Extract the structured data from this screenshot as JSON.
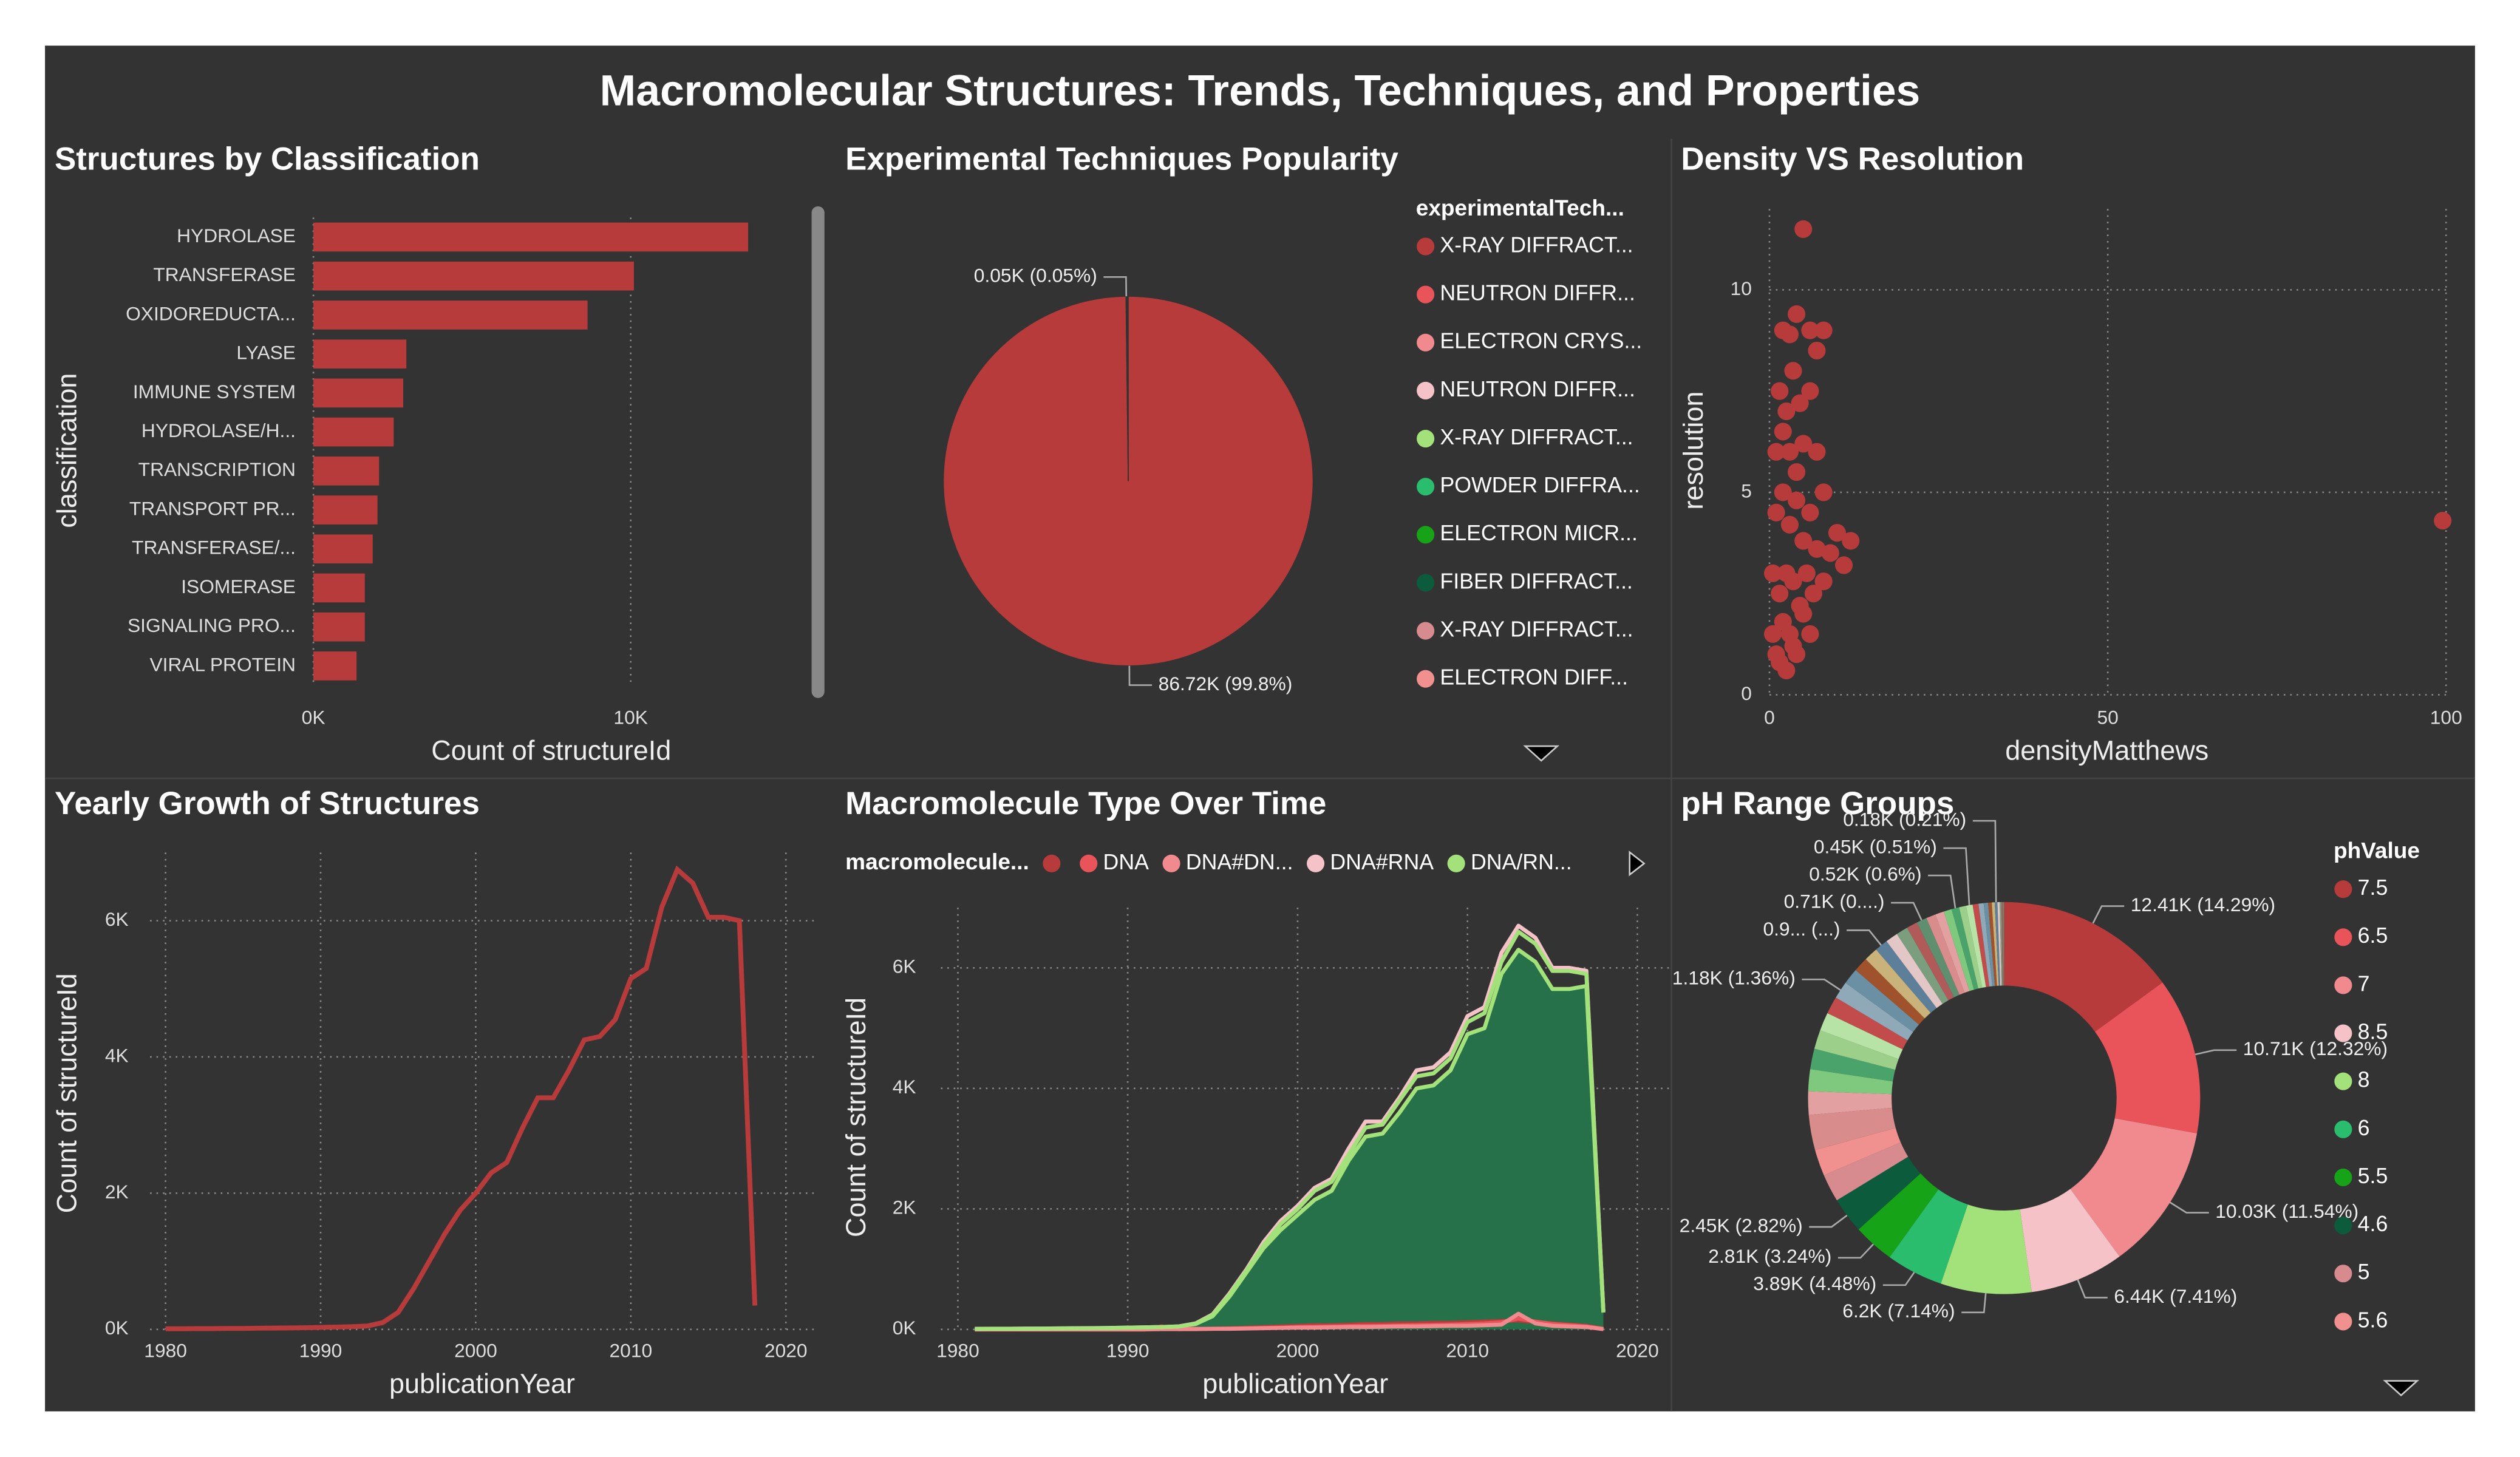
{
  "title": "Macromolecular Structures: Trends, Techniques, and Properties",
  "chart_data": [
    {
      "type": "bar",
      "orientation": "horizontal",
      "title": "Structures by Classification",
      "categories": [
        "HYDROLASE",
        "TRANSFERASE",
        "OXIDOREDUCTA...",
        "LYASE",
        "IMMUNE SYSTEM",
        "HYDROLASE/H...",
        "TRANSCRIPTION",
        "TRANSPORT PR...",
        "TRANSFERASE/...",
        "ISOMERASE",
        "SIGNALING PRO...",
        "VIRAL PROTEIN"
      ],
      "values": [
        13700,
        10100,
        8640,
        2930,
        2830,
        2530,
        2070,
        2020,
        1870,
        1620,
        1620,
        1360
      ],
      "color": "#b83b3b",
      "xlabel": "Count of structureId",
      "ylabel": "classification",
      "xlim": [
        0,
        15700
      ],
      "xticks": [
        {
          "value": 0,
          "label": "0K"
        },
        {
          "value": 10000,
          "label": "10K"
        }
      ],
      "grid": true
    },
    {
      "type": "pie",
      "title": "Experimental Techniques Popularity",
      "legend_title": "experimentalTech...",
      "categories": [
        "X-RAY DIFFRACT...",
        "NEUTRON DIFFR...",
        "ELECTRON CRYS...",
        "NEUTRON DIFFR...",
        "X-RAY DIFFRACT...",
        "POWDER DIFFRA...",
        "ELECTRON MICR...",
        "FIBER DIFFRACT...",
        "X-RAY DIFFRACT...",
        "ELECTRON DIFF..."
      ],
      "values": [
        86720,
        47,
        40,
        30,
        20,
        12,
        8,
        6,
        4,
        3
      ],
      "value_labels": [
        "86.72K (99.8%)",
        "0.05K (0.05%)",
        null,
        null,
        null,
        null,
        null,
        null,
        null,
        null
      ],
      "colors": [
        "#b83b3b",
        "#e8545a",
        "#f08a8e",
        "#f5c3c7",
        "#a3e27a",
        "#2abd6e",
        "#17a317",
        "#0c5b3c",
        "#d88b8e",
        "#f0908f"
      ]
    },
    {
      "type": "scatter",
      "title": "Density VS Resolution",
      "xlabel": "densityMatthews",
      "ylabel": "resolution",
      "x": [
        5,
        99.5,
        2,
        3,
        4,
        6,
        8,
        7,
        1.5,
        2.5,
        3.5,
        4.5,
        6,
        1,
        2,
        3,
        4,
        5,
        7,
        8,
        10,
        12,
        11,
        9,
        1,
        2,
        3,
        4,
        5,
        6,
        7,
        0.5,
        1.5,
        2.5,
        3.5,
        4.5,
        5.5,
        6.5,
        8,
        0.5,
        1,
        2,
        3,
        4,
        5,
        6,
        1.5,
        2.5,
        3.5
      ],
      "values": [
        11.5,
        4.3,
        9,
        8.9,
        9.4,
        9,
        9,
        8.5,
        7.5,
        7,
        8,
        7.2,
        7.5,
        6,
        6.5,
        6,
        5.5,
        6.2,
        6,
        5,
        4,
        3.8,
        3.2,
        3.5,
        4.5,
        5,
        4.2,
        4.8,
        3.8,
        4.5,
        3.6,
        3,
        2.5,
        3,
        2.8,
        2.2,
        3,
        2.5,
        2.8,
        1.5,
        1,
        1.8,
        1.5,
        1,
        2,
        1.5,
        0.8,
        0.6,
        1.2
      ],
      "color": "#b83b3b",
      "xlim": [
        0,
        100
      ],
      "ylim": [
        0,
        12
      ],
      "xticks": [
        0,
        50,
        100
      ],
      "yticks": [
        0,
        5,
        10
      ],
      "grid": true
    },
    {
      "type": "line",
      "title": "Yearly Growth of Structures",
      "xlabel": "publicationYear",
      "ylabel": "Count of structureId",
      "x": [
        1980,
        1981,
        1982,
        1983,
        1984,
        1985,
        1986,
        1987,
        1988,
        1989,
        1990,
        1991,
        1992,
        1993,
        1994,
        1995,
        1996,
        1997,
        1998,
        1999,
        2000,
        2001,
        2002,
        2003,
        2004,
        2005,
        2006,
        2007,
        2008,
        2009,
        2010,
        2011,
        2012,
        2013,
        2014,
        2015,
        2016,
        2017,
        2018
      ],
      "values": [
        10,
        10,
        12,
        12,
        15,
        15,
        18,
        20,
        22,
        25,
        30,
        35,
        40,
        50,
        100,
        250,
        600,
        1000,
        1400,
        1750,
        2000,
        2300,
        2450,
        2950,
        3400,
        3400,
        3800,
        4250,
        4300,
        4550,
        5150,
        5300,
        6200,
        6750,
        6550,
        6050,
        6050,
        6000,
        350
      ],
      "color": "#b83b3b",
      "xlim": [
        1979,
        2022
      ],
      "ylim": [
        0,
        7000
      ],
      "xticks": [
        1980,
        1990,
        2000,
        2010,
        2020
      ],
      "yticks": [
        {
          "value": 0,
          "label": "0K"
        },
        {
          "value": 2000,
          "label": "2K"
        },
        {
          "value": 4000,
          "label": "4K"
        },
        {
          "value": 6000,
          "label": "6K"
        }
      ],
      "grid": true
    },
    {
      "type": "area",
      "title": "Macromolecule Type Over Time",
      "legend_title": "macromolecule...",
      "xlabel": "publicationYear",
      "ylabel": "Count of structureId",
      "x": [
        1980,
        1981,
        1982,
        1983,
        1984,
        1985,
        1986,
        1987,
        1988,
        1989,
        1990,
        1991,
        1992,
        1993,
        1994,
        1995,
        1996,
        1997,
        1998,
        1999,
        2000,
        2001,
        2002,
        2003,
        2004,
        2005,
        2006,
        2007,
        2008,
        2009,
        2010,
        2011,
        2012,
        2013,
        2014,
        2015,
        2016,
        2017,
        2018
      ],
      "series": [
        {
          "color": "#a3e27a",
          "fill": "#27714a",
          "values": [
            null,
            5,
            5,
            8,
            10,
            12,
            15,
            18,
            20,
            25,
            30,
            35,
            40,
            50,
            90,
            220,
            550,
            950,
            1350,
            1650,
            1900,
            2150,
            2300,
            2800,
            3200,
            3250,
            3600,
            4000,
            4050,
            4300,
            4900,
            5000,
            5900,
            6300,
            6100,
            5650,
            5650,
            5700,
            300
          ]
        },
        {
          "name": null,
          "color": "#b83b3b",
          "values": [
            null,
            0,
            0,
            0,
            0,
            0,
            0,
            0,
            0,
            0,
            0,
            0,
            50,
            5,
            10,
            15,
            20,
            30,
            40,
            50,
            60,
            70,
            70,
            80,
            90,
            90,
            100,
            100,
            110,
            110,
            120,
            130,
            140,
            150,
            120,
            100,
            80,
            60,
            10
          ]
        },
        {
          "name": "DNA",
          "color": "#e8545a",
          "values": [
            null,
            0,
            0,
            0,
            0,
            0,
            0,
            0,
            0,
            0,
            0,
            0,
            20,
            5,
            10,
            10,
            15,
            20,
            25,
            30,
            40,
            45,
            50,
            55,
            60,
            60,
            65,
            70,
            75,
            80,
            90,
            100,
            120,
            180,
            130,
            90,
            70,
            50,
            10
          ]
        },
        {
          "name": "DNA#DN...",
          "color": "#f08a8e",
          "values": [
            null,
            0,
            0,
            0,
            0,
            0,
            0,
            0,
            0,
            0,
            0,
            0,
            5,
            5,
            5,
            10,
            10,
            15,
            20,
            25,
            30,
            30,
            35,
            40,
            40,
            45,
            50,
            50,
            55,
            60,
            60,
            70,
            80,
            260,
            100,
            60,
            50,
            40,
            5
          ]
        },
        {
          "name": "DNA#RNA",
          "color": "#f5c3c7",
          "values": [
            null,
            10,
            12,
            12,
            15,
            15,
            18,
            20,
            22,
            25,
            30,
            35,
            40,
            50,
            100,
            250,
            600,
            1000,
            1450,
            1800,
            2050,
            2350,
            2500,
            3000,
            3450,
            3450,
            3850,
            4300,
            4350,
            4600,
            5200,
            5350,
            6250,
            6700,
            6500,
            6000,
            6000,
            5950,
            300
          ]
        },
        {
          "name": "DNA/RN...",
          "color": "#a3e27a",
          "values": [
            null,
            8,
            10,
            10,
            12,
            14,
            16,
            18,
            20,
            22,
            28,
            32,
            38,
            48,
            95,
            240,
            580,
            980,
            1400,
            1750,
            2000,
            2300,
            2450,
            2900,
            3350,
            3400,
            3800,
            4200,
            4250,
            4500,
            5100,
            5250,
            6100,
            6600,
            6400,
            5950,
            5950,
            5900,
            280
          ]
        }
      ],
      "xlim": [
        1979,
        2022
      ],
      "ylim": [
        0,
        7000
      ],
      "xticks": [
        1980,
        1990,
        2000,
        2010,
        2020
      ],
      "yticks": [
        {
          "value": 0,
          "label": "0K"
        },
        {
          "value": 2000,
          "label": "2K"
        },
        {
          "value": 4000,
          "label": "4K"
        },
        {
          "value": 6000,
          "label": "6K"
        }
      ],
      "grid": true
    },
    {
      "type": "donut",
      "title": "pH Range Groups",
      "legend_title": "phValue",
      "categories": [
        "7.5",
        "6.5",
        "7",
        "8.5",
        "8",
        "6",
        "5.5",
        "4.6",
        "5",
        "5.6",
        null,
        null,
        null,
        null,
        null,
        null,
        null,
        null,
        null,
        null,
        null,
        null,
        null,
        null,
        null,
        null,
        null,
        null,
        null,
        null,
        null,
        null,
        null,
        null,
        null,
        null,
        null,
        null,
        null,
        null,
        null,
        null
      ],
      "values": [
        12410,
        10710,
        10030,
        6440,
        6200,
        3890,
        2810,
        2450,
        1900,
        1800,
        2400,
        1600,
        1500,
        1400,
        1300,
        1250,
        1200,
        1180,
        1100,
        1000,
        950,
        900,
        850,
        800,
        750,
        710,
        650,
        600,
        550,
        520,
        480,
        446,
        400,
        350,
        300,
        250,
        200,
        182,
        150,
        120,
        100,
        80
      ],
      "value_labels": [
        "12.41K (14.29%)",
        "10.71K (12.32%)",
        "10.03K (11.54%)",
        "6.44K (7.41%)",
        "6.2K (7.14%)",
        "3.89K (4.48%)",
        "2.81K (3.24%)",
        "2.45K (2.82%)",
        null,
        null,
        null,
        null,
        null,
        null,
        null,
        null,
        null,
        "1.18K (1.36%)",
        null,
        null,
        null,
        "0.9... (...)",
        null,
        null,
        null,
        "0.71K (0....)",
        null,
        null,
        null,
        "0.52K (0.6%)",
        null,
        "0.45K (0.51%)",
        null,
        null,
        null,
        null,
        null,
        "0.18K (0.21%)",
        null,
        null,
        null,
        null
      ],
      "colors": [
        "#b83b3b",
        "#e8545a",
        "#f08a8e",
        "#f5c3c7",
        "#a3e27a",
        "#2abd6e",
        "#17a317",
        "#0c5b3c",
        "#d88b8e",
        "#f0908f",
        "#d98c8c",
        "#e3a0a0",
        "#7fc97f",
        "#4aa36b",
        "#9ccf8a",
        "#b7e3a6",
        "#c24b4b",
        "#8fa9b8",
        "#6b8fa3",
        "#a0522d",
        "#c9b37a",
        "#5d7f99",
        "#e3c6c6",
        "#7a9e7e",
        "#b05a5a",
        "#5f8f6f",
        "#d98c8c",
        "#e3a0a0",
        "#7fc97f",
        "#4aa36b",
        "#9ccf8a",
        "#b7e3a6",
        "#c24b4b",
        "#8fa9b8",
        "#6b8fa3",
        "#a0522d",
        "#c9b37a",
        "#5d7f99",
        "#e3c6c6",
        "#7a9e7e",
        "#b05a5a",
        "#5f8f6f"
      ]
    }
  ]
}
